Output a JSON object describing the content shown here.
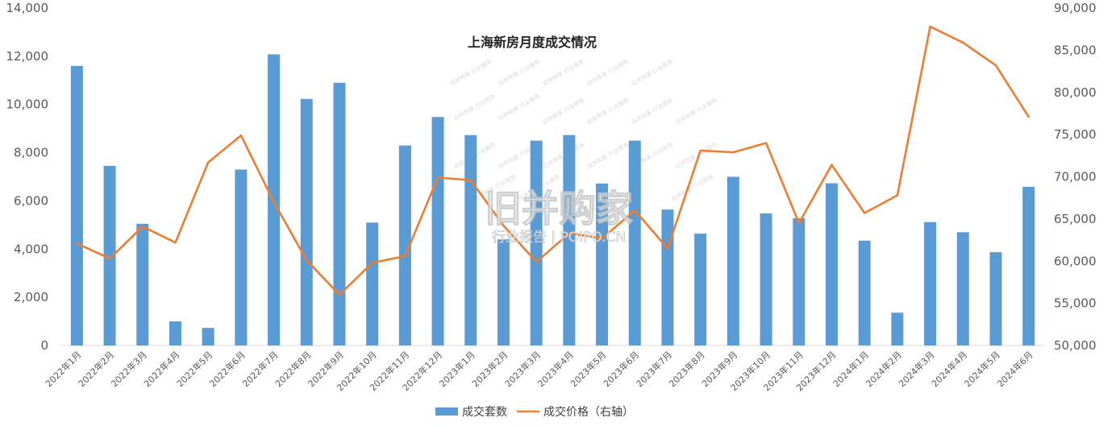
{
  "chart_data": {
    "type": "bar",
    "title": "上海新房月度成交情况",
    "categories": [
      "2022年1月",
      "2022年2月",
      "2022年3月",
      "2022年4月",
      "2022年5月",
      "2022年6月",
      "2022年7月",
      "2022年8月",
      "2022年9月",
      "2022年10月",
      "2022年11月",
      "2022年12月",
      "2023年1月",
      "2023年2月",
      "2023年3月",
      "2023年4月",
      "2023年5月",
      "2023年6月",
      "2023年7月",
      "2023年8月",
      "2023年9月",
      "2023年10月",
      "2023年11月",
      "2023年12月",
      "2024年1月",
      "2024年2月",
      "2024年3月",
      "2024年4月",
      "2024年5月",
      "2024年6月"
    ],
    "series": [
      {
        "name": "成交套数",
        "type": "bar",
        "axis": "left",
        "color": "#5b9bd5",
        "values": [
          11600,
          7450,
          5050,
          1000,
          730,
          7300,
          12080,
          10230,
          10900,
          5100,
          8300,
          9480,
          8730,
          4400,
          8500,
          8730,
          6720,
          8500,
          5640,
          4640,
          7000,
          5480,
          5280,
          6730,
          4350,
          1360,
          5120,
          4700,
          3870,
          6580
        ]
      },
      {
        "name": "成交价格（右轴）",
        "type": "line",
        "axis": "right",
        "color": "#ed7d31",
        "values": [
          62100,
          60300,
          64100,
          62200,
          71700,
          74900,
          67000,
          60100,
          56000,
          59800,
          60600,
          69900,
          69600,
          64200,
          59900,
          63300,
          62700,
          66000,
          61500,
          73100,
          72900,
          74000,
          64500,
          71400,
          65700,
          67800,
          87800,
          85900,
          83200,
          77100
        ]
      }
    ],
    "y_left": {
      "min": 0,
      "max": 14000,
      "ticks": [
        "0",
        "2,000",
        "4,000",
        "6,000",
        "8,000",
        "10,000",
        "12,000",
        "14,000"
      ]
    },
    "y_right": {
      "min": 50000,
      "max": 90000,
      "ticks": [
        "50,000",
        "55,000",
        "60,000",
        "65,000",
        "70,000",
        "75,000",
        "80,000",
        "85,000",
        "90,000"
      ]
    },
    "grid": false,
    "legend_position": "bottom-center"
  },
  "watermark": {
    "main": "旧并购家",
    "sub": "行业报告 | POIPO.CN",
    "small": "旧并购家 行业报告"
  }
}
